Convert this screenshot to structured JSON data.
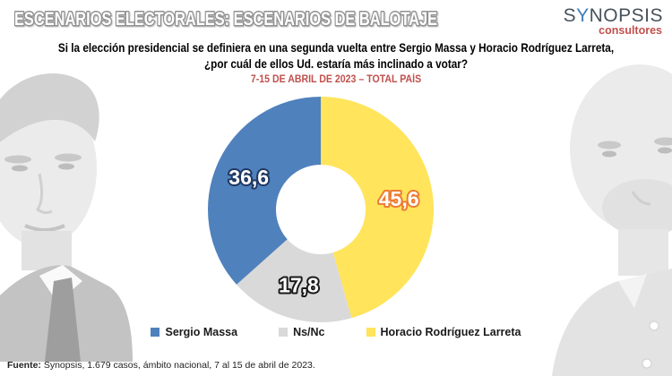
{
  "header": {
    "title": "ESCENARIOS ELECTORALES: ESCENARIOS DE BALOTAJE",
    "title_fill": "#ffffff",
    "title_outline": "#909090",
    "logo": {
      "part1": "S",
      "part2": "Y",
      "part3": "NOPSIS",
      "subtitle": "consultores",
      "name_color": "#47525C",
      "y_color": "#3F7CB6",
      "subtitle_color": "#C0504D"
    }
  },
  "question": {
    "line1": "Si la elección presidencial se definiera en una segunda vuelta entre Sergio Massa y Horacio Rodríguez Larreta,",
    "line2": "¿por cuál de ellos Ud. estaría más inclinado a votar?",
    "subtitle": "7-15 DE ABRIL DE 2023 – TOTAL PAÍS",
    "subtitle_color": "#C0504D"
  },
  "chart_data": {
    "type": "pie",
    "subtype": "donut",
    "unit": "%",
    "direction": "clockwise",
    "start_angle_deg": 0,
    "inner_radius_ratio": 0.4,
    "slices_clockwise_from_top": [
      {
        "name": "Horacio Rodríguez Larreta",
        "value": 45.6,
        "label": "45,6",
        "color": "#FFE45C",
        "label_outline": "#ED7D31"
      },
      {
        "name": "Ns/Nc",
        "value": 17.8,
        "label": "17,8",
        "color": "#D9D9D9",
        "label_outline": "#1A1A1A"
      },
      {
        "name": "Sergio Massa",
        "value": 36.6,
        "label": "36,6",
        "color": "#4F81BD",
        "label_outline": "#1F3864"
      }
    ],
    "legend": [
      {
        "label": "Sergio Massa",
        "color": "#4F81BD"
      },
      {
        "label": "Ns/Nc",
        "color": "#D9D9D9"
      },
      {
        "label": "Horacio Rodríguez Larreta",
        "color": "#FFE45C"
      }
    ],
    "legend_position": "bottom"
  },
  "footer": {
    "prefix": "Fuente:",
    "text": " Synopsis, 1.679 casos, ámbito nacional, 7 al 15 de abril de 2023."
  }
}
